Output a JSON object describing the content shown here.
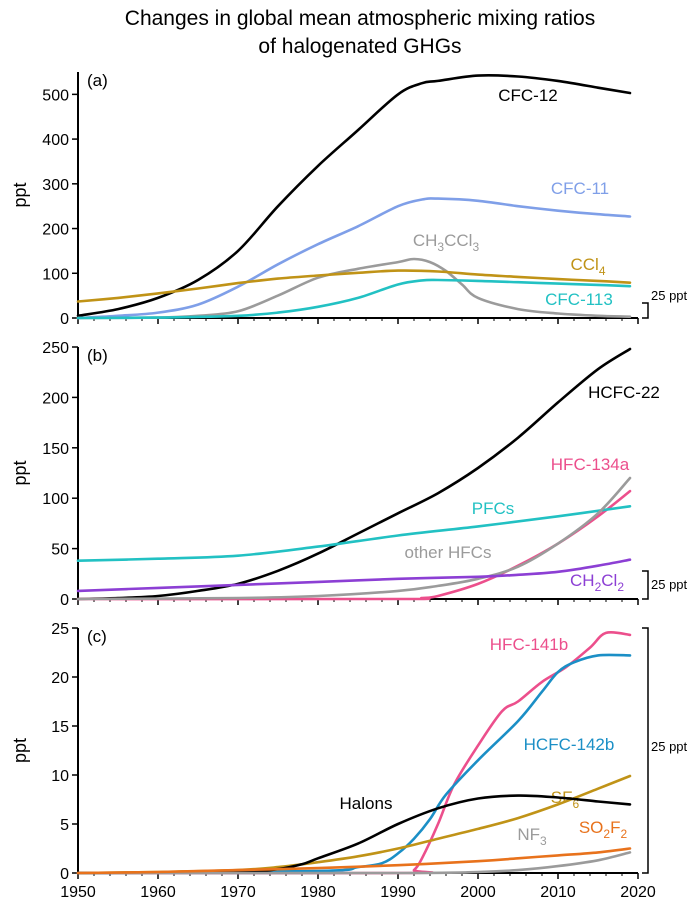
{
  "figure": {
    "title_line1": "Changes in global mean atmospheric mixing ratios",
    "title_line2": "of halogenated GHGs"
  },
  "chart_data": [
    {
      "type": "line",
      "panel_label": "(a)",
      "ylabel": "ppt",
      "xlim": [
        1950,
        2020
      ],
      "ylim": [
        0,
        550
      ],
      "yticks": [
        0,
        100,
        200,
        300,
        400,
        500
      ],
      "xticks": [
        1950,
        1960,
        1970,
        1980,
        1990,
        2000,
        2010,
        2020
      ],
      "scale_bar_label": "25 ppt",
      "series": [
        {
          "name": "CFC-12",
          "label_main": "CFC-12",
          "label_sub": "",
          "label_tail": "",
          "color": "#000000",
          "x": [
            1950,
            1955,
            1960,
            1965,
            1970,
            1975,
            1980,
            1985,
            1990,
            1993,
            1995,
            2000,
            2005,
            2010,
            2015,
            2019
          ],
          "y": [
            5,
            20,
            45,
            85,
            150,
            250,
            340,
            420,
            500,
            525,
            530,
            542,
            540,
            530,
            515,
            503
          ]
        },
        {
          "name": "CFC-11",
          "label_main": "CFC-11",
          "label_sub": "",
          "label_tail": "",
          "color": "#7f9fe8",
          "x": [
            1950,
            1955,
            1960,
            1965,
            1970,
            1975,
            1980,
            1985,
            1990,
            1993,
            1995,
            2000,
            2005,
            2010,
            2015,
            2019
          ],
          "y": [
            0,
            5,
            12,
            30,
            70,
            120,
            165,
            205,
            250,
            265,
            267,
            262,
            250,
            240,
            232,
            227
          ]
        },
        {
          "name": "CH3CCl3",
          "label_main": "CH",
          "label_sub": "3",
          "label_tail": "CCl",
          "label_sub2": "3",
          "color": "#9b9b9b",
          "x": [
            1950,
            1960,
            1965,
            1970,
            1975,
            1980,
            1985,
            1990,
            1992,
            1994,
            1996,
            1998,
            2000,
            2005,
            2010,
            2015,
            2019
          ],
          "y": [
            0,
            1,
            5,
            15,
            50,
            90,
            110,
            125,
            132,
            125,
            105,
            75,
            45,
            20,
            10,
            5,
            3
          ]
        },
        {
          "name": "CCl4",
          "label_main": "CCl",
          "label_sub": "4",
          "label_tail": "",
          "color": "#c09317",
          "x": [
            1950,
            1955,
            1960,
            1965,
            1970,
            1975,
            1980,
            1985,
            1990,
            1995,
            2000,
            2005,
            2010,
            2015,
            2019
          ],
          "y": [
            37,
            45,
            55,
            66,
            78,
            88,
            95,
            101,
            106,
            104,
            97,
            92,
            87,
            83,
            79
          ]
        },
        {
          "name": "CFC-113",
          "label_main": "CFC-113",
          "label_sub": "",
          "label_tail": "",
          "color": "#22c1c3",
          "x": [
            1950,
            1960,
            1970,
            1975,
            1980,
            1985,
            1990,
            1993,
            1995,
            2000,
            2005,
            2010,
            2015,
            2019
          ],
          "y": [
            0,
            1,
            5,
            12,
            25,
            45,
            75,
            84,
            85,
            83,
            80,
            77,
            74,
            71
          ]
        }
      ]
    },
    {
      "type": "line",
      "panel_label": "(b)",
      "ylabel": "ppt",
      "xlim": [
        1950,
        2020
      ],
      "ylim": [
        0,
        250
      ],
      "yticks": [
        0,
        50,
        100,
        150,
        200,
        250
      ],
      "xticks": [
        1950,
        1960,
        1970,
        1980,
        1990,
        2000,
        2010,
        2020
      ],
      "scale_bar_label": "25 ppt",
      "series": [
        {
          "name": "HCFC-22",
          "label_main": "HCFC-22",
          "label_sub": "",
          "label_tail": "",
          "color": "#000000",
          "x": [
            1950,
            1955,
            1960,
            1965,
            1970,
            1975,
            1980,
            1985,
            1990,
            1995,
            2000,
            2005,
            2010,
            2015,
            2019
          ],
          "y": [
            0,
            1,
            3,
            8,
            15,
            28,
            45,
            65,
            85,
            105,
            130,
            160,
            195,
            228,
            248
          ]
        },
        {
          "name": "HFC-134a",
          "label_main": "HFC-134a",
          "label_sub": "",
          "label_tail": "",
          "color": "#ec4f8c",
          "x": [
            1950,
            1990,
            1993,
            1995,
            2000,
            2005,
            2010,
            2015,
            2019
          ],
          "y": [
            0,
            0,
            1,
            3,
            15,
            33,
            55,
            82,
            107
          ]
        },
        {
          "name": "PFCs",
          "label_main": "PFCs",
          "label_sub": "",
          "label_tail": "",
          "color": "#22c1c3",
          "x": [
            1950,
            1960,
            1970,
            1980,
            1990,
            2000,
            2010,
            2019
          ],
          "y": [
            38,
            40,
            43,
            52,
            63,
            72,
            82,
            92
          ]
        },
        {
          "name": "other HFCs",
          "label_main": "other HFCs",
          "label_sub": "",
          "label_tail": "",
          "color": "#9b9b9b",
          "x": [
            1950,
            1970,
            1980,
            1990,
            1995,
            2000,
            2005,
            2010,
            2015,
            2019
          ],
          "y": [
            0,
            1,
            3,
            8,
            13,
            20,
            32,
            55,
            85,
            120
          ]
        },
        {
          "name": "CH2Cl2",
          "label_main": "CH",
          "label_sub": "2",
          "label_tail": "Cl",
          "label_sub2": "2",
          "color": "#8c3fd4",
          "x": [
            1950,
            1960,
            1970,
            1980,
            1990,
            2000,
            2005,
            2010,
            2015,
            2019
          ],
          "y": [
            8,
            11,
            14,
            17,
            20,
            22,
            24,
            27,
            33,
            39
          ]
        }
      ]
    },
    {
      "type": "line",
      "panel_label": "(c)",
      "ylabel": "ppt",
      "xlim": [
        1950,
        2020
      ],
      "ylim": [
        0,
        25
      ],
      "yticks": [
        0,
        5,
        10,
        15,
        20,
        25
      ],
      "xticks": [
        1950,
        1960,
        1970,
        1980,
        1990,
        2000,
        2010,
        2020
      ],
      "scale_bar_label": "25 ppt",
      "series": [
        {
          "name": "HFC-141b",
          "label_main": "HFC-141b",
          "label_sub": "",
          "label_tail": "",
          "color": "#ec4f8c",
          "x": [
            1950,
            1991,
            1992,
            1993,
            1995,
            1997,
            2000,
            2003,
            2005,
            2008,
            2011,
            2014,
            2016,
            2019
          ],
          "y": [
            0,
            0,
            0.3,
            1.5,
            5,
            9,
            13,
            16.5,
            17.5,
            19.5,
            21,
            23,
            24.5,
            24.3
          ]
        },
        {
          "name": "HCFC-142b",
          "label_main": "HCFC-142b",
          "label_sub": "",
          "label_tail": "",
          "color": "#1b8fc6",
          "x": [
            1950,
            1980,
            1985,
            1988,
            1990,
            1992,
            1994,
            1996,
            2000,
            2005,
            2008,
            2010,
            2012,
            2015,
            2019
          ],
          "y": [
            0,
            0.2,
            0.6,
            1,
            2,
            3.5,
            5.5,
            8,
            11.5,
            15.5,
            18.5,
            20.5,
            21.5,
            22.2,
            22.2
          ]
        },
        {
          "name": "SF6",
          "label_main": "SF",
          "label_sub": "6",
          "label_tail": "",
          "color": "#c09317",
          "x": [
            1950,
            1960,
            1970,
            1975,
            1980,
            1985,
            1990,
            1995,
            2000,
            2005,
            2010,
            2015,
            2019
          ],
          "y": [
            0,
            0.1,
            0.3,
            0.6,
            1.1,
            1.7,
            2.5,
            3.5,
            4.5,
            5.6,
            7,
            8.6,
            9.9
          ]
        },
        {
          "name": "Halons",
          "label_main": "Halons",
          "label_sub": "",
          "label_tail": "",
          "color": "#000000",
          "x": [
            1950,
            1970,
            1975,
            1978,
            1980,
            1985,
            1990,
            1995,
            2000,
            2005,
            2010,
            2015,
            2019
          ],
          "y": [
            0,
            0.1,
            0.4,
            0.9,
            1.5,
            3,
            5,
            6.6,
            7.6,
            7.9,
            7.7,
            7.3,
            7
          ]
        },
        {
          "name": "NF3",
          "label_main": "NF",
          "label_sub": "3",
          "label_tail": "",
          "color": "#9b9b9b",
          "x": [
            1950,
            1990,
            2000,
            2005,
            2010,
            2015,
            2019
          ],
          "y": [
            0,
            0,
            0.1,
            0.3,
            0.7,
            1.3,
            2.1
          ]
        },
        {
          "name": "SO2F2",
          "label_main": "SO",
          "label_sub": "2",
          "label_tail": "F",
          "label_sub2": "2",
          "color": "#e8721c",
          "x": [
            1950,
            1960,
            1970,
            1980,
            1990,
            2000,
            2005,
            2010,
            2015,
            2019
          ],
          "y": [
            0,
            0.1,
            0.3,
            0.5,
            0.8,
            1.2,
            1.5,
            1.8,
            2.1,
            2.5
          ]
        }
      ]
    }
  ]
}
